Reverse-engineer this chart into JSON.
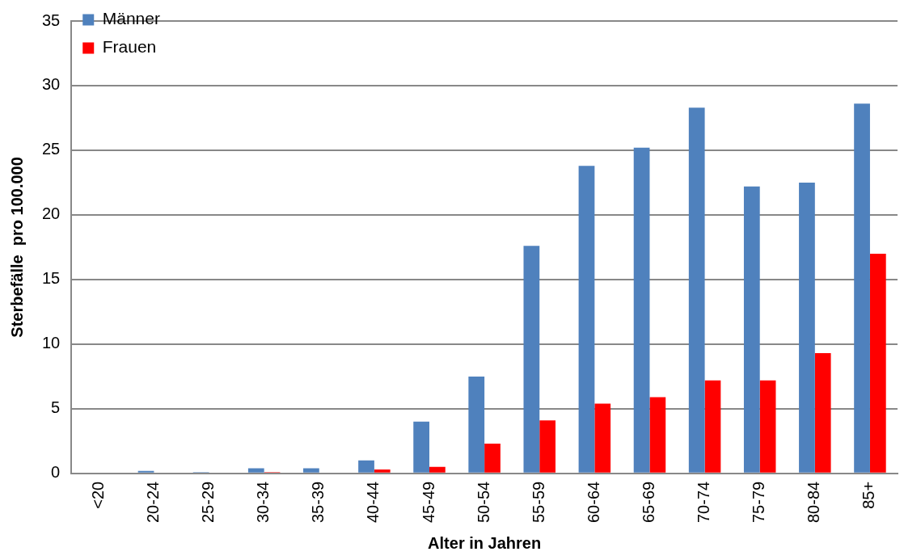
{
  "chart_data": {
    "type": "bar",
    "xlabel": "Alter in Jahren",
    "ylabel": "Sterbefälle  pro 100.000",
    "categories": [
      "<20",
      "20-24",
      "25-29",
      "30-34",
      "35-39",
      "40-44",
      "45-49",
      "50-54",
      "55-59",
      "60-64",
      "65-69",
      "70-74",
      "75-79",
      "80-84",
      "85+"
    ],
    "series": [
      {
        "name": "Männer",
        "color": "#4f81bd",
        "values": [
          0,
          0.2,
          0.1,
          0.4,
          0.4,
          1.0,
          4.0,
          7.5,
          17.6,
          23.8,
          25.2,
          28.3,
          22.2,
          22.5,
          28.6
        ]
      },
      {
        "name": "Frauen",
        "color": "#ff0000",
        "values": [
          0,
          0,
          0,
          0.1,
          0,
          0.3,
          0.5,
          2.3,
          4.1,
          5.4,
          5.9,
          7.2,
          7.2,
          9.3,
          17.0
        ]
      }
    ],
    "ylim": [
      0,
      35
    ],
    "yticks": [
      0,
      5,
      10,
      15,
      20,
      25,
      30,
      35
    ],
    "grid": "y",
    "legend": "top left"
  }
}
